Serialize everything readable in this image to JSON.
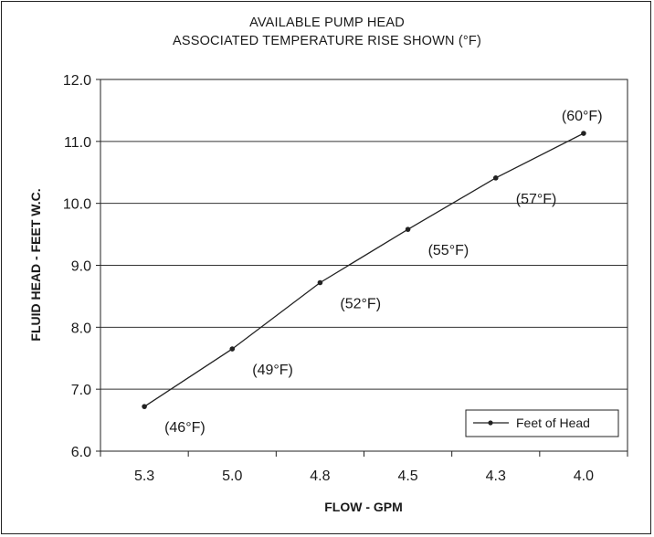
{
  "chart_data": {
    "type": "line",
    "title": "AVAILABLE PUMP HEAD",
    "subtitle": "ASSOCIATED TEMPERATURE RISE SHOWN (°F)",
    "xlabel": "FLOW - GPM",
    "ylabel": "FLUID HEAD - FEET W.C.",
    "categories": [
      "5.3",
      "5.0",
      "4.8",
      "4.5",
      "4.3",
      "4.0"
    ],
    "ylim": [
      6.0,
      12.0
    ],
    "yticks": [
      "6.0",
      "7.0",
      "8.0",
      "9.0",
      "10.0",
      "11.0",
      "12.0"
    ],
    "grid": true,
    "legend_position": "bottom-right",
    "series": [
      {
        "name": "Feet of Head",
        "values": [
          6.72,
          7.65,
          8.72,
          9.58,
          10.41,
          11.13
        ],
        "labels": [
          "(46°F)",
          "(49°F)",
          "(52°F)",
          "(55°F)",
          "(57°F)",
          "(60°F)"
        ]
      }
    ]
  }
}
